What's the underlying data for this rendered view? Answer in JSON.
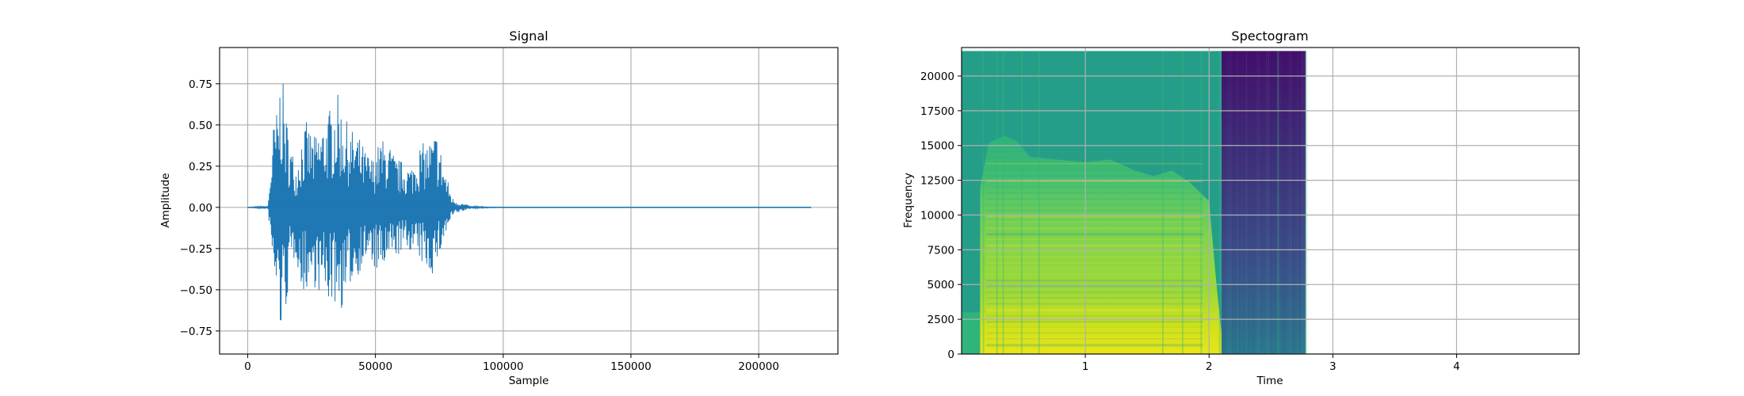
{
  "chart_data": [
    {
      "type": "line",
      "title": "Signal",
      "xlabel": "Sample",
      "ylabel": "Amplitude",
      "xlim": [
        -11000,
        231000
      ],
      "ylim": [
        -0.89,
        0.97
      ],
      "grid": true,
      "color": "#1f77b4",
      "x_ticks": [
        0,
        50000,
        100000,
        150000,
        200000
      ],
      "x_tick_labels": [
        "0",
        "50000",
        "100000",
        "150000",
        "200000"
      ],
      "y_ticks": [
        -0.75,
        -0.5,
        -0.25,
        0.0,
        0.25,
        0.5,
        0.75
      ],
      "y_tick_labels": [
        "−0.75",
        "−0.50",
        "−0.25",
        "0.00",
        "0.25",
        "0.50",
        "0.75"
      ],
      "series": [
        {
          "x": [
            0,
            8000,
            10000,
            12000,
            13000,
            15000,
            17000,
            19000,
            21000,
            23000,
            26000,
            29000,
            32000,
            35000,
            38000,
            40000,
            43000,
            46000,
            49000,
            52000,
            55000,
            58000,
            61000,
            64000,
            67000,
            70000,
            72000,
            74000,
            77000,
            80000,
            83000,
            87000,
            90000,
            100000,
            150000,
            220500
          ],
          "upper": [
            0.0,
            0.01,
            0.5,
            0.63,
            0.89,
            0.57,
            0.38,
            0.25,
            0.45,
            0.52,
            0.43,
            0.5,
            0.6,
            0.7,
            0.55,
            0.48,
            0.45,
            0.35,
            0.3,
            0.42,
            0.4,
            0.3,
            0.28,
            0.25,
            0.38,
            0.4,
            0.42,
            0.47,
            0.25,
            0.06,
            0.03,
            0.01,
            0.005,
            0.0,
            0.0,
            0.0
          ],
          "lower": [
            0.0,
            -0.01,
            -0.45,
            -0.6,
            -0.8,
            -0.62,
            -0.4,
            -0.28,
            -0.55,
            -0.5,
            -0.48,
            -0.55,
            -0.58,
            -0.6,
            -0.64,
            -0.48,
            -0.42,
            -0.33,
            -0.37,
            -0.42,
            -0.35,
            -0.3,
            -0.28,
            -0.26,
            -0.33,
            -0.38,
            -0.42,
            -0.35,
            -0.2,
            -0.06,
            -0.03,
            -0.01,
            -0.005,
            0.0,
            0.0,
            0.0
          ]
        }
      ]
    },
    {
      "type": "heatmap",
      "title": "Spectogram",
      "xlabel": "Time",
      "ylabel": "Frequency",
      "xlim": [
        0,
        4.99
      ],
      "ylim": [
        0,
        22050
      ],
      "grid": true,
      "colormap": "viridis",
      "colors": [
        "#440154",
        "#3b528b",
        "#21918c",
        "#5ec962",
        "#fde725"
      ],
      "x_ticks": [
        1,
        2,
        3,
        4
      ],
      "x_tick_labels": [
        "1",
        "2",
        "3",
        "4"
      ],
      "y_ticks": [
        0,
        2500,
        5000,
        7500,
        10000,
        12500,
        15000,
        17500,
        20000
      ],
      "y_tick_labels": [
        "0",
        "2500",
        "5000",
        "7500",
        "10000",
        "12500",
        "15000",
        "17500",
        "20000"
      ],
      "data_extent": {
        "time": [
          0,
          2.78
        ],
        "frequency": [
          0,
          21800
        ]
      },
      "speech_region": {
        "time": [
          0.15,
          2.1
        ],
        "frequency": [
          0,
          15700
        ]
      },
      "silence_region": {
        "time": [
          2.1,
          2.78
        ]
      }
    }
  ]
}
